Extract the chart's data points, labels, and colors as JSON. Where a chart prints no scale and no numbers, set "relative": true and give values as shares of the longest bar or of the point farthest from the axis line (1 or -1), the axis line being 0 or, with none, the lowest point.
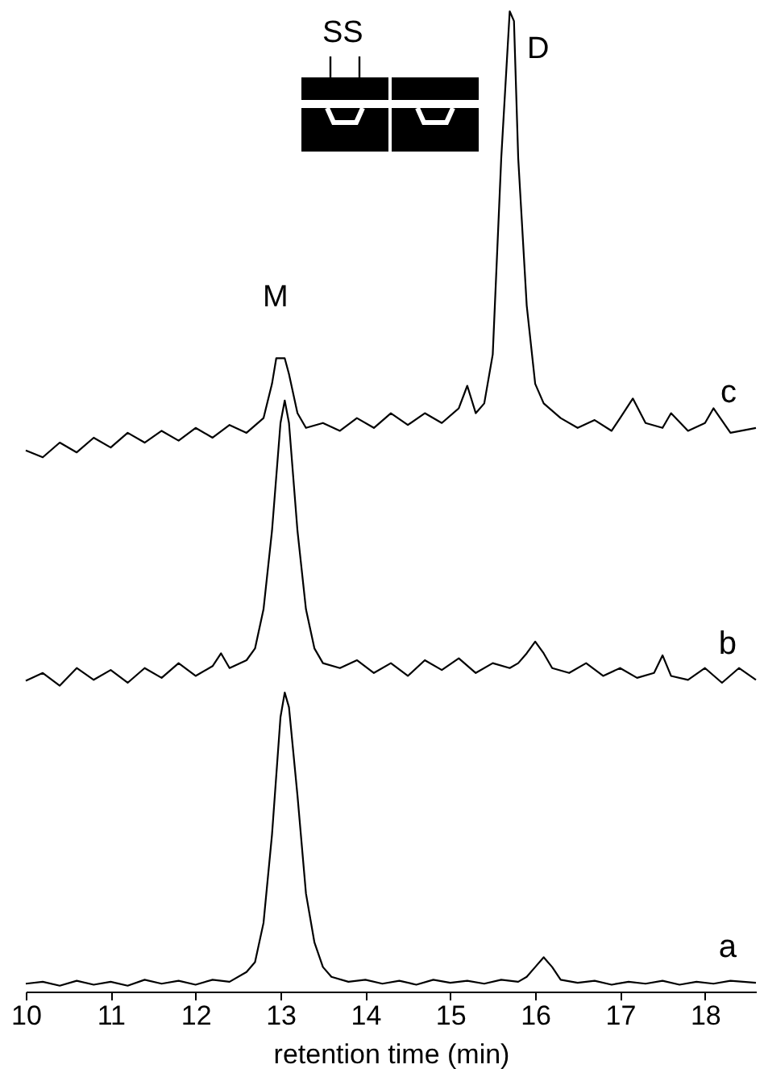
{
  "chart_data": {
    "type": "line",
    "relative": true,
    "xlabel": "retention time (min)",
    "xlim": [
      10,
      18.6
    ],
    "xticks": [
      10,
      11,
      12,
      13,
      14,
      15,
      16,
      17,
      18
    ],
    "grid": false,
    "legend": false,
    "marker": "none",
    "line_style": "solid",
    "annotations": [
      "M",
      "D",
      "SS"
    ],
    "series": [
      {
        "name": "c",
        "color": "#000000",
        "x": [
          10.0,
          10.2,
          10.4,
          10.6,
          10.8,
          11.0,
          11.2,
          11.4,
          11.6,
          11.8,
          12.0,
          12.2,
          12.4,
          12.6,
          12.8,
          12.9,
          12.95,
          13.05,
          13.1,
          13.2,
          13.3,
          13.5,
          13.7,
          13.9,
          14.1,
          14.3,
          14.5,
          14.7,
          14.9,
          15.1,
          15.2,
          15.3,
          15.4,
          15.5,
          15.6,
          15.7,
          15.75,
          15.8,
          15.9,
          16.0,
          16.1,
          16.3,
          16.5,
          16.7,
          16.9,
          17.0,
          17.15,
          17.3,
          17.5,
          17.6,
          17.8,
          18.0,
          18.1,
          18.3,
          18.6
        ],
        "values": [
          0.552,
          0.545,
          0.56,
          0.55,
          0.565,
          0.555,
          0.57,
          0.56,
          0.572,
          0.562,
          0.575,
          0.565,
          0.578,
          0.57,
          0.585,
          0.62,
          0.646,
          0.646,
          0.63,
          0.59,
          0.575,
          0.58,
          0.572,
          0.585,
          0.575,
          0.59,
          0.578,
          0.59,
          0.58,
          0.595,
          0.618,
          0.59,
          0.6,
          0.65,
          0.85,
          1.0,
          0.99,
          0.85,
          0.7,
          0.62,
          0.6,
          0.585,
          0.575,
          0.583,
          0.572,
          0.585,
          0.605,
          0.58,
          0.575,
          0.59,
          0.572,
          0.58,
          0.595,
          0.57,
          0.575
        ]
      },
      {
        "name": "b",
        "color": "#000000",
        "x": [
          10.0,
          10.2,
          10.4,
          10.6,
          10.8,
          11.0,
          11.2,
          11.4,
          11.6,
          11.8,
          12.0,
          12.2,
          12.3,
          12.4,
          12.6,
          12.7,
          12.8,
          12.9,
          13.0,
          13.05,
          13.1,
          13.2,
          13.3,
          13.4,
          13.5,
          13.7,
          13.9,
          14.1,
          14.3,
          14.5,
          14.7,
          14.9,
          15.1,
          15.3,
          15.5,
          15.7,
          15.8,
          15.9,
          16.0,
          16.1,
          16.2,
          16.4,
          16.6,
          16.8,
          17.0,
          17.2,
          17.4,
          17.5,
          17.6,
          17.8,
          18.0,
          18.2,
          18.4,
          18.6
        ],
        "values": [
          0.317,
          0.325,
          0.312,
          0.33,
          0.318,
          0.328,
          0.315,
          0.33,
          0.32,
          0.335,
          0.322,
          0.332,
          0.345,
          0.33,
          0.338,
          0.35,
          0.39,
          0.47,
          0.58,
          0.603,
          0.58,
          0.47,
          0.39,
          0.35,
          0.335,
          0.33,
          0.338,
          0.325,
          0.335,
          0.322,
          0.338,
          0.328,
          0.34,
          0.325,
          0.335,
          0.33,
          0.335,
          0.345,
          0.357,
          0.345,
          0.33,
          0.325,
          0.335,
          0.322,
          0.33,
          0.32,
          0.325,
          0.343,
          0.322,
          0.318,
          0.33,
          0.315,
          0.33,
          0.318
        ]
      },
      {
        "name": "a",
        "color": "#000000",
        "x": [
          10.0,
          10.2,
          10.4,
          10.6,
          10.8,
          11.0,
          11.2,
          11.4,
          11.6,
          11.8,
          12.0,
          12.2,
          12.4,
          12.6,
          12.7,
          12.8,
          12.9,
          13.0,
          13.05,
          13.1,
          13.2,
          13.3,
          13.4,
          13.5,
          13.6,
          13.8,
          14.0,
          14.2,
          14.4,
          14.6,
          14.8,
          15.0,
          15.2,
          15.4,
          15.6,
          15.8,
          15.9,
          16.0,
          16.1,
          16.2,
          16.3,
          16.5,
          16.7,
          16.9,
          17.1,
          17.3,
          17.5,
          17.7,
          17.9,
          18.1,
          18.3,
          18.6
        ],
        "values": [
          0.008,
          0.01,
          0.006,
          0.011,
          0.007,
          0.01,
          0.006,
          0.012,
          0.008,
          0.011,
          0.007,
          0.012,
          0.01,
          0.02,
          0.03,
          0.07,
          0.16,
          0.28,
          0.305,
          0.29,
          0.2,
          0.1,
          0.05,
          0.025,
          0.015,
          0.01,
          0.012,
          0.008,
          0.011,
          0.007,
          0.012,
          0.009,
          0.011,
          0.008,
          0.012,
          0.01,
          0.015,
          0.025,
          0.035,
          0.025,
          0.012,
          0.009,
          0.011,
          0.007,
          0.01,
          0.008,
          0.011,
          0.007,
          0.01,
          0.008,
          0.011,
          0.009
        ]
      }
    ]
  }
}
